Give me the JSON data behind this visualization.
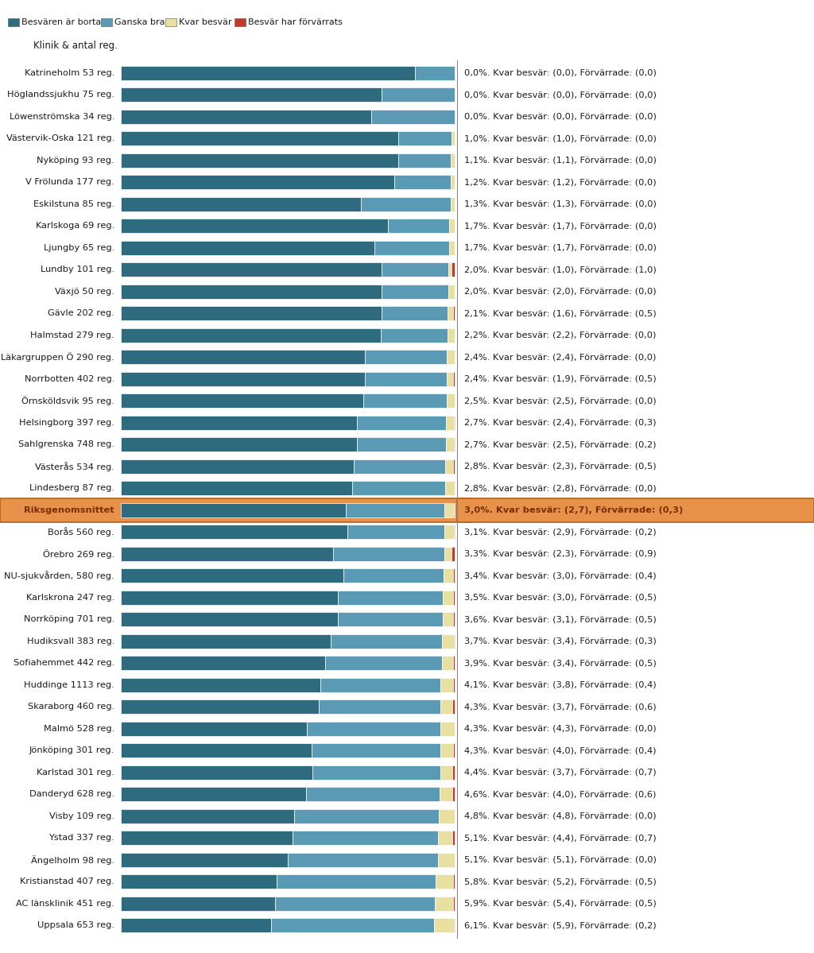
{
  "legend_labels": [
    "Besvären är borta",
    "Ganska bra",
    "Kvar besvär",
    "Besvär har förvärrats"
  ],
  "legend_colors": [
    "#2e6b7e",
    "#5b9ab5",
    "#e8e0a0",
    "#c0392b"
  ],
  "header": "Klinik & antal reg.",
  "rows": [
    {
      "label": "Katrineholm 53 reg.",
      "dark": 88.0,
      "light": 12.0,
      "yellow": 0.0,
      "red": 0.0,
      "pct": "0,0%",
      "kvar": "(0,0)",
      "forv": "(0,0)",
      "bold": false
    },
    {
      "label": "Höglandssjukhu 75 reg.",
      "dark": 78.0,
      "light": 22.0,
      "yellow": 0.0,
      "red": 0.0,
      "pct": "0,0%",
      "kvar": "(0,0)",
      "forv": "(0,0)",
      "bold": false
    },
    {
      "label": "Löwenströmska 34 reg.",
      "dark": 75.0,
      "light": 25.0,
      "yellow": 0.0,
      "red": 0.0,
      "pct": "0,0%",
      "kvar": "(0,0)",
      "forv": "(0,0)",
      "bold": false
    },
    {
      "label": "Västervik-Oska 121 reg.",
      "dark": 83.0,
      "light": 16.0,
      "yellow": 1.0,
      "red": 0.0,
      "pct": "1,0%",
      "kvar": "(1,0)",
      "forv": "(0,0)",
      "bold": false
    },
    {
      "label": "Nyköping 93 reg.",
      "dark": 83.0,
      "light": 15.9,
      "yellow": 1.1,
      "red": 0.0,
      "pct": "1,1%",
      "kvar": "(1,1)",
      "forv": "(0,0)",
      "bold": false
    },
    {
      "label": "V Frölunda 177 reg.",
      "dark": 82.0,
      "light": 16.8,
      "yellow": 1.2,
      "red": 0.0,
      "pct": "1,2%",
      "kvar": "(1,2)",
      "forv": "(0,0)",
      "bold": false
    },
    {
      "label": "Eskilstuna 85 reg.",
      "dark": 72.0,
      "light": 26.7,
      "yellow": 1.3,
      "red": 0.0,
      "pct": "1,3%",
      "kvar": "(1,3)",
      "forv": "(0,0)",
      "bold": false
    },
    {
      "label": "Karlskoga 69 reg.",
      "dark": 80.0,
      "light": 18.3,
      "yellow": 1.7,
      "red": 0.0,
      "pct": "1,7%",
      "kvar": "(1,7)",
      "forv": "(0,0)",
      "bold": false
    },
    {
      "label": "Ljungby 65 reg.",
      "dark": 76.0,
      "light": 22.3,
      "yellow": 1.7,
      "red": 0.0,
      "pct": "1,7%",
      "kvar": "(1,7)",
      "forv": "(0,0)",
      "bold": false
    },
    {
      "label": "Lundby 101 reg.",
      "dark": 78.0,
      "light": 20.0,
      "yellow": 1.0,
      "red": 1.0,
      "pct": "2,0%",
      "kvar": "(1,0)",
      "forv": "(1,0)",
      "bold": false
    },
    {
      "label": "Växjö 50 reg.",
      "dark": 78.0,
      "light": 20.0,
      "yellow": 2.0,
      "red": 0.0,
      "pct": "2,0%",
      "kvar": "(2,0)",
      "forv": "(0,0)",
      "bold": false
    },
    {
      "label": "Gävle 202 reg.",
      "dark": 78.0,
      "light": 19.9,
      "yellow": 1.6,
      "red": 0.5,
      "pct": "2,1%",
      "kvar": "(1,6)",
      "forv": "(0,5)",
      "bold": false
    },
    {
      "label": "Halmstad 279 reg.",
      "dark": 77.8,
      "light": 20.0,
      "yellow": 2.2,
      "red": 0.0,
      "pct": "2,2%",
      "kvar": "(2,2)",
      "forv": "(0,0)",
      "bold": false
    },
    {
      "label": "Läkargruppen Ö 290 reg.",
      "dark": 73.2,
      "light": 24.4,
      "yellow": 2.4,
      "red": 0.0,
      "pct": "2,4%",
      "kvar": "(2,4)",
      "forv": "(0,0)",
      "bold": false
    },
    {
      "label": "Norrbotten 402 reg.",
      "dark": 73.1,
      "light": 24.4,
      "yellow": 1.9,
      "red": 0.5,
      "pct": "2,4%",
      "kvar": "(1,9)",
      "forv": "(0,5)",
      "bold": false
    },
    {
      "label": "Örnsköldsvik 95 reg.",
      "dark": 72.5,
      "light": 25.0,
      "yellow": 2.5,
      "red": 0.0,
      "pct": "2,5%",
      "kvar": "(2,5)",
      "forv": "(0,0)",
      "bold": false
    },
    {
      "label": "Helsingborg 397 reg.",
      "dark": 70.6,
      "light": 26.7,
      "yellow": 2.4,
      "red": 0.3,
      "pct": "2,7%",
      "kvar": "(2,4)",
      "forv": "(0,3)",
      "bold": false
    },
    {
      "label": "Sahlgrenska 748 reg.",
      "dark": 70.8,
      "light": 26.5,
      "yellow": 2.5,
      "red": 0.2,
      "pct": "2,7%",
      "kvar": "(2,5)",
      "forv": "(0,2)",
      "bold": false
    },
    {
      "label": "Västerås 534 reg.",
      "dark": 69.7,
      "light": 27.5,
      "yellow": 2.3,
      "red": 0.5,
      "pct": "2,8%",
      "kvar": "(2,3)",
      "forv": "(0,5)",
      "bold": false
    },
    {
      "label": "Lindesberg 87 reg.",
      "dark": 69.4,
      "light": 27.8,
      "yellow": 2.8,
      "red": 0.0,
      "pct": "2,8%",
      "kvar": "(2,8)",
      "forv": "(0,0)",
      "bold": false
    },
    {
      "label": "Riksgenomsnittet",
      "dark": 67.3,
      "light": 29.7,
      "yellow": 2.7,
      "red": 0.3,
      "pct": "3,0%",
      "kvar": "(2,7)",
      "forv": "(0,3)",
      "bold": true
    },
    {
      "label": "Borås 560 reg.",
      "dark": 67.9,
      "light": 29.0,
      "yellow": 2.9,
      "red": 0.2,
      "pct": "3,1%",
      "kvar": "(2,9)",
      "forv": "(0,2)",
      "bold": false
    },
    {
      "label": "Örebro 269 reg.",
      "dark": 63.4,
      "light": 33.3,
      "yellow": 2.3,
      "red": 0.9,
      "pct": "3,3%",
      "kvar": "(2,3)",
      "forv": "(0,9)",
      "bold": false
    },
    {
      "label": "NU-sjukvården, 580 reg.",
      "dark": 66.6,
      "light": 30.0,
      "yellow": 3.0,
      "red": 0.4,
      "pct": "3,4%",
      "kvar": "(3,0)",
      "forv": "(0,4)",
      "bold": false
    },
    {
      "label": "Karlskrona 247 reg.",
      "dark": 65.0,
      "light": 31.5,
      "yellow": 3.0,
      "red": 0.5,
      "pct": "3,5%",
      "kvar": "(3,0)",
      "forv": "(0,5)",
      "bold": false
    },
    {
      "label": "Norrköping 701 reg.",
      "dark": 64.9,
      "light": 31.5,
      "yellow": 3.1,
      "red": 0.5,
      "pct": "3,6%",
      "kvar": "(3,1)",
      "forv": "(0,5)",
      "bold": false
    },
    {
      "label": "Hudiksvall 383 reg.",
      "dark": 62.9,
      "light": 33.4,
      "yellow": 3.4,
      "red": 0.3,
      "pct": "3,7%",
      "kvar": "(3,4)",
      "forv": "(0,3)",
      "bold": false
    },
    {
      "label": "Sofiahemmet 442 reg.",
      "dark": 61.1,
      "light": 35.0,
      "yellow": 3.4,
      "red": 0.5,
      "pct": "3,9%",
      "kvar": "(3,4)",
      "forv": "(0,5)",
      "bold": false
    },
    {
      "label": "Huddinge 1113 reg.",
      "dark": 59.9,
      "light": 36.0,
      "yellow": 3.8,
      "red": 0.4,
      "pct": "4,1%",
      "kvar": "(3,8)",
      "forv": "(0,4)",
      "bold": false
    },
    {
      "label": "Skaraborg 460 reg.",
      "dark": 59.4,
      "light": 36.3,
      "yellow": 3.7,
      "red": 0.6,
      "pct": "4,3%",
      "kvar": "(3,7)",
      "forv": "(0,6)",
      "bold": false
    },
    {
      "label": "Malmö 528 reg.",
      "dark": 55.7,
      "light": 40.0,
      "yellow": 4.3,
      "red": 0.0,
      "pct": "4,3%",
      "kvar": "(4,3)",
      "forv": "(0,0)",
      "bold": false
    },
    {
      "label": "Jönköping 301 reg.",
      "dark": 57.3,
      "light": 38.4,
      "yellow": 4.0,
      "red": 0.4,
      "pct": "4,3%",
      "kvar": "(4,0)",
      "forv": "(0,4)",
      "bold": false
    },
    {
      "label": "Karlstad 301 reg.",
      "dark": 57.3,
      "light": 38.3,
      "yellow": 3.7,
      "red": 0.7,
      "pct": "4,4%",
      "kvar": "(3,7)",
      "forv": "(0,7)",
      "bold": false
    },
    {
      "label": "Danderyd 628 reg.",
      "dark": 55.4,
      "light": 40.0,
      "yellow": 4.0,
      "red": 0.6,
      "pct": "4,6%",
      "kvar": "(4,0)",
      "forv": "(0,6)",
      "bold": false
    },
    {
      "label": "Visby 109 reg.",
      "dark": 52.0,
      "light": 43.2,
      "yellow": 4.8,
      "red": 0.0,
      "pct": "4,8%",
      "kvar": "(4,8)",
      "forv": "(0,0)",
      "bold": false
    },
    {
      "label": "Ystad 337 reg.",
      "dark": 51.5,
      "light": 43.4,
      "yellow": 4.4,
      "red": 0.7,
      "pct": "5,1%",
      "kvar": "(4,4)",
      "forv": "(0,7)",
      "bold": false
    },
    {
      "label": "Ängelholm 98 reg.",
      "dark": 49.9,
      "light": 45.0,
      "yellow": 5.1,
      "red": 0.0,
      "pct": "5,1%",
      "kvar": "(5,1)",
      "forv": "(0,0)",
      "bold": false
    },
    {
      "label": "Kristianstad 407 reg.",
      "dark": 46.7,
      "light": 47.5,
      "yellow": 5.2,
      "red": 0.5,
      "pct": "5,8%",
      "kvar": "(5,2)",
      "forv": "(0,5)",
      "bold": false
    },
    {
      "label": "AC länsklinik 451 reg.",
      "dark": 46.1,
      "light": 48.0,
      "yellow": 5.4,
      "red": 0.5,
      "pct": "5,9%",
      "kvar": "(5,4)",
      "forv": "(0,5)",
      "bold": false
    },
    {
      "label": "Uppsala 653 reg.",
      "dark": 45.0,
      "light": 48.9,
      "yellow": 5.9,
      "red": 0.2,
      "pct": "6,1%",
      "kvar": "(5,9)",
      "forv": "(0,2)",
      "bold": false
    }
  ],
  "color_dark": "#2e6b7e",
  "color_light": "#5b9ab5",
  "color_yellow": "#e8e0a0",
  "color_red": "#c0392b",
  "color_riksavg_bg": "#e8914a",
  "color_riksavg_border": "#b5621e",
  "annotation_color_bold": "#7b2e00",
  "annotation_color_normal": "#1a1a1a",
  "figsize": [
    10.24,
    11.99
  ],
  "dpi": 100
}
